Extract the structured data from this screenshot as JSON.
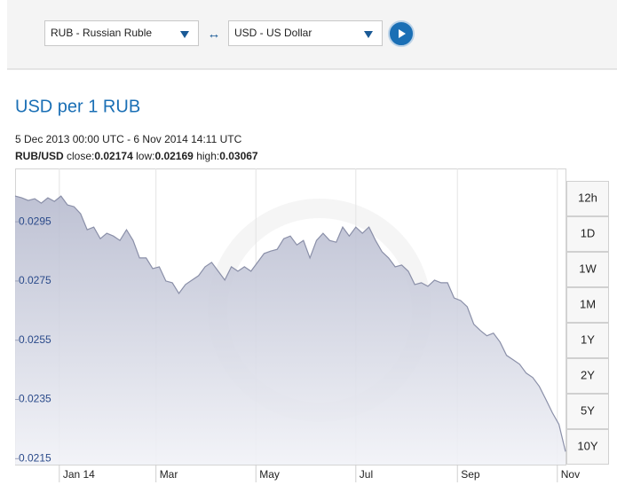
{
  "selectors": {
    "from": "RUB - Russian Ruble",
    "swap": "↔",
    "to": "USD - US Dollar"
  },
  "stats": {
    "pair": "RUB/USD",
    "close_label": "close:",
    "close": 0.02174,
    "low_label": "low:",
    "low": 0.02169,
    "high_label": "high:",
    "high": 0.03067
  },
  "ranges": [
    "12h",
    "1D",
    "1W",
    "1M",
    "1Y",
    "2Y",
    "5Y",
    "10Y"
  ],
  "chart_data": {
    "type": "area",
    "title": "USD per 1 RUB",
    "subtitle": "5 Dec 2013 00:00 UTC - 6 Nov 2014 14:11 UTC",
    "x": [
      0,
      4,
      8,
      12,
      16,
      20,
      24,
      28,
      32,
      36,
      40,
      44,
      48,
      52,
      56,
      60,
      64,
      68,
      72,
      76,
      80,
      84,
      88,
      92,
      96,
      100,
      104,
      108,
      112,
      116,
      120,
      124,
      128,
      132,
      136,
      140,
      144,
      148,
      152,
      156,
      160,
      164,
      168,
      172,
      176,
      180,
      184,
      188,
      192,
      196,
      200,
      204,
      208,
      212,
      216,
      220,
      224,
      228,
      232,
      236,
      240,
      244,
      248,
      252,
      256,
      260,
      264,
      268,
      272,
      276,
      280,
      284,
      288,
      292,
      296,
      300,
      304,
      308,
      312,
      316,
      320,
      324,
      328,
      332,
      336
    ],
    "values": [
      0.03037,
      0.03031,
      0.03022,
      0.03028,
      0.03013,
      0.03031,
      0.03019,
      0.03037,
      0.03007,
      0.03001,
      0.02977,
      0.02923,
      0.02932,
      0.02893,
      0.02911,
      0.02902,
      0.02887,
      0.02923,
      0.02887,
      0.02828,
      0.02828,
      0.02792,
      0.02798,
      0.0275,
      0.02744,
      0.02708,
      0.02738,
      0.02753,
      0.02768,
      0.02798,
      0.02813,
      0.02783,
      0.02753,
      0.02798,
      0.02783,
      0.02798,
      0.02783,
      0.02813,
      0.02843,
      0.02851,
      0.02857,
      0.02893,
      0.02902,
      0.02872,
      0.02887,
      0.02828,
      0.02887,
      0.02911,
      0.02887,
      0.02881,
      0.02932,
      0.02902,
      0.02932,
      0.02911,
      0.02932,
      0.02887,
      0.02849,
      0.02828,
      0.02798,
      0.02804,
      0.02783,
      0.02738,
      0.02744,
      0.02732,
      0.02753,
      0.02744,
      0.02744,
      0.02693,
      0.02684,
      0.02663,
      0.02604,
      0.02583,
      0.02565,
      0.02574,
      0.02544,
      0.02499,
      0.02484,
      0.02469,
      0.02439,
      0.02424,
      0.02394,
      0.0235,
      0.02305,
      0.02266,
      0.02174
    ],
    "color": "#8a8fa8",
    "xlim": [
      0,
      336
    ],
    "xticks": [
      {
        "value": 27,
        "label": "Jan 14"
      },
      {
        "value": 86,
        "label": "Mar"
      },
      {
        "value": 147,
        "label": "May"
      },
      {
        "value": 208,
        "label": "Jul"
      },
      {
        "value": 270,
        "label": "Sep"
      },
      {
        "value": 331,
        "label": "Nov"
      }
    ],
    "ylim": [
      0.0213,
      0.0313
    ],
    "yticks": [
      0.0215,
      0.0235,
      0.0255,
      0.0275,
      0.0295
    ],
    "grid": true
  }
}
